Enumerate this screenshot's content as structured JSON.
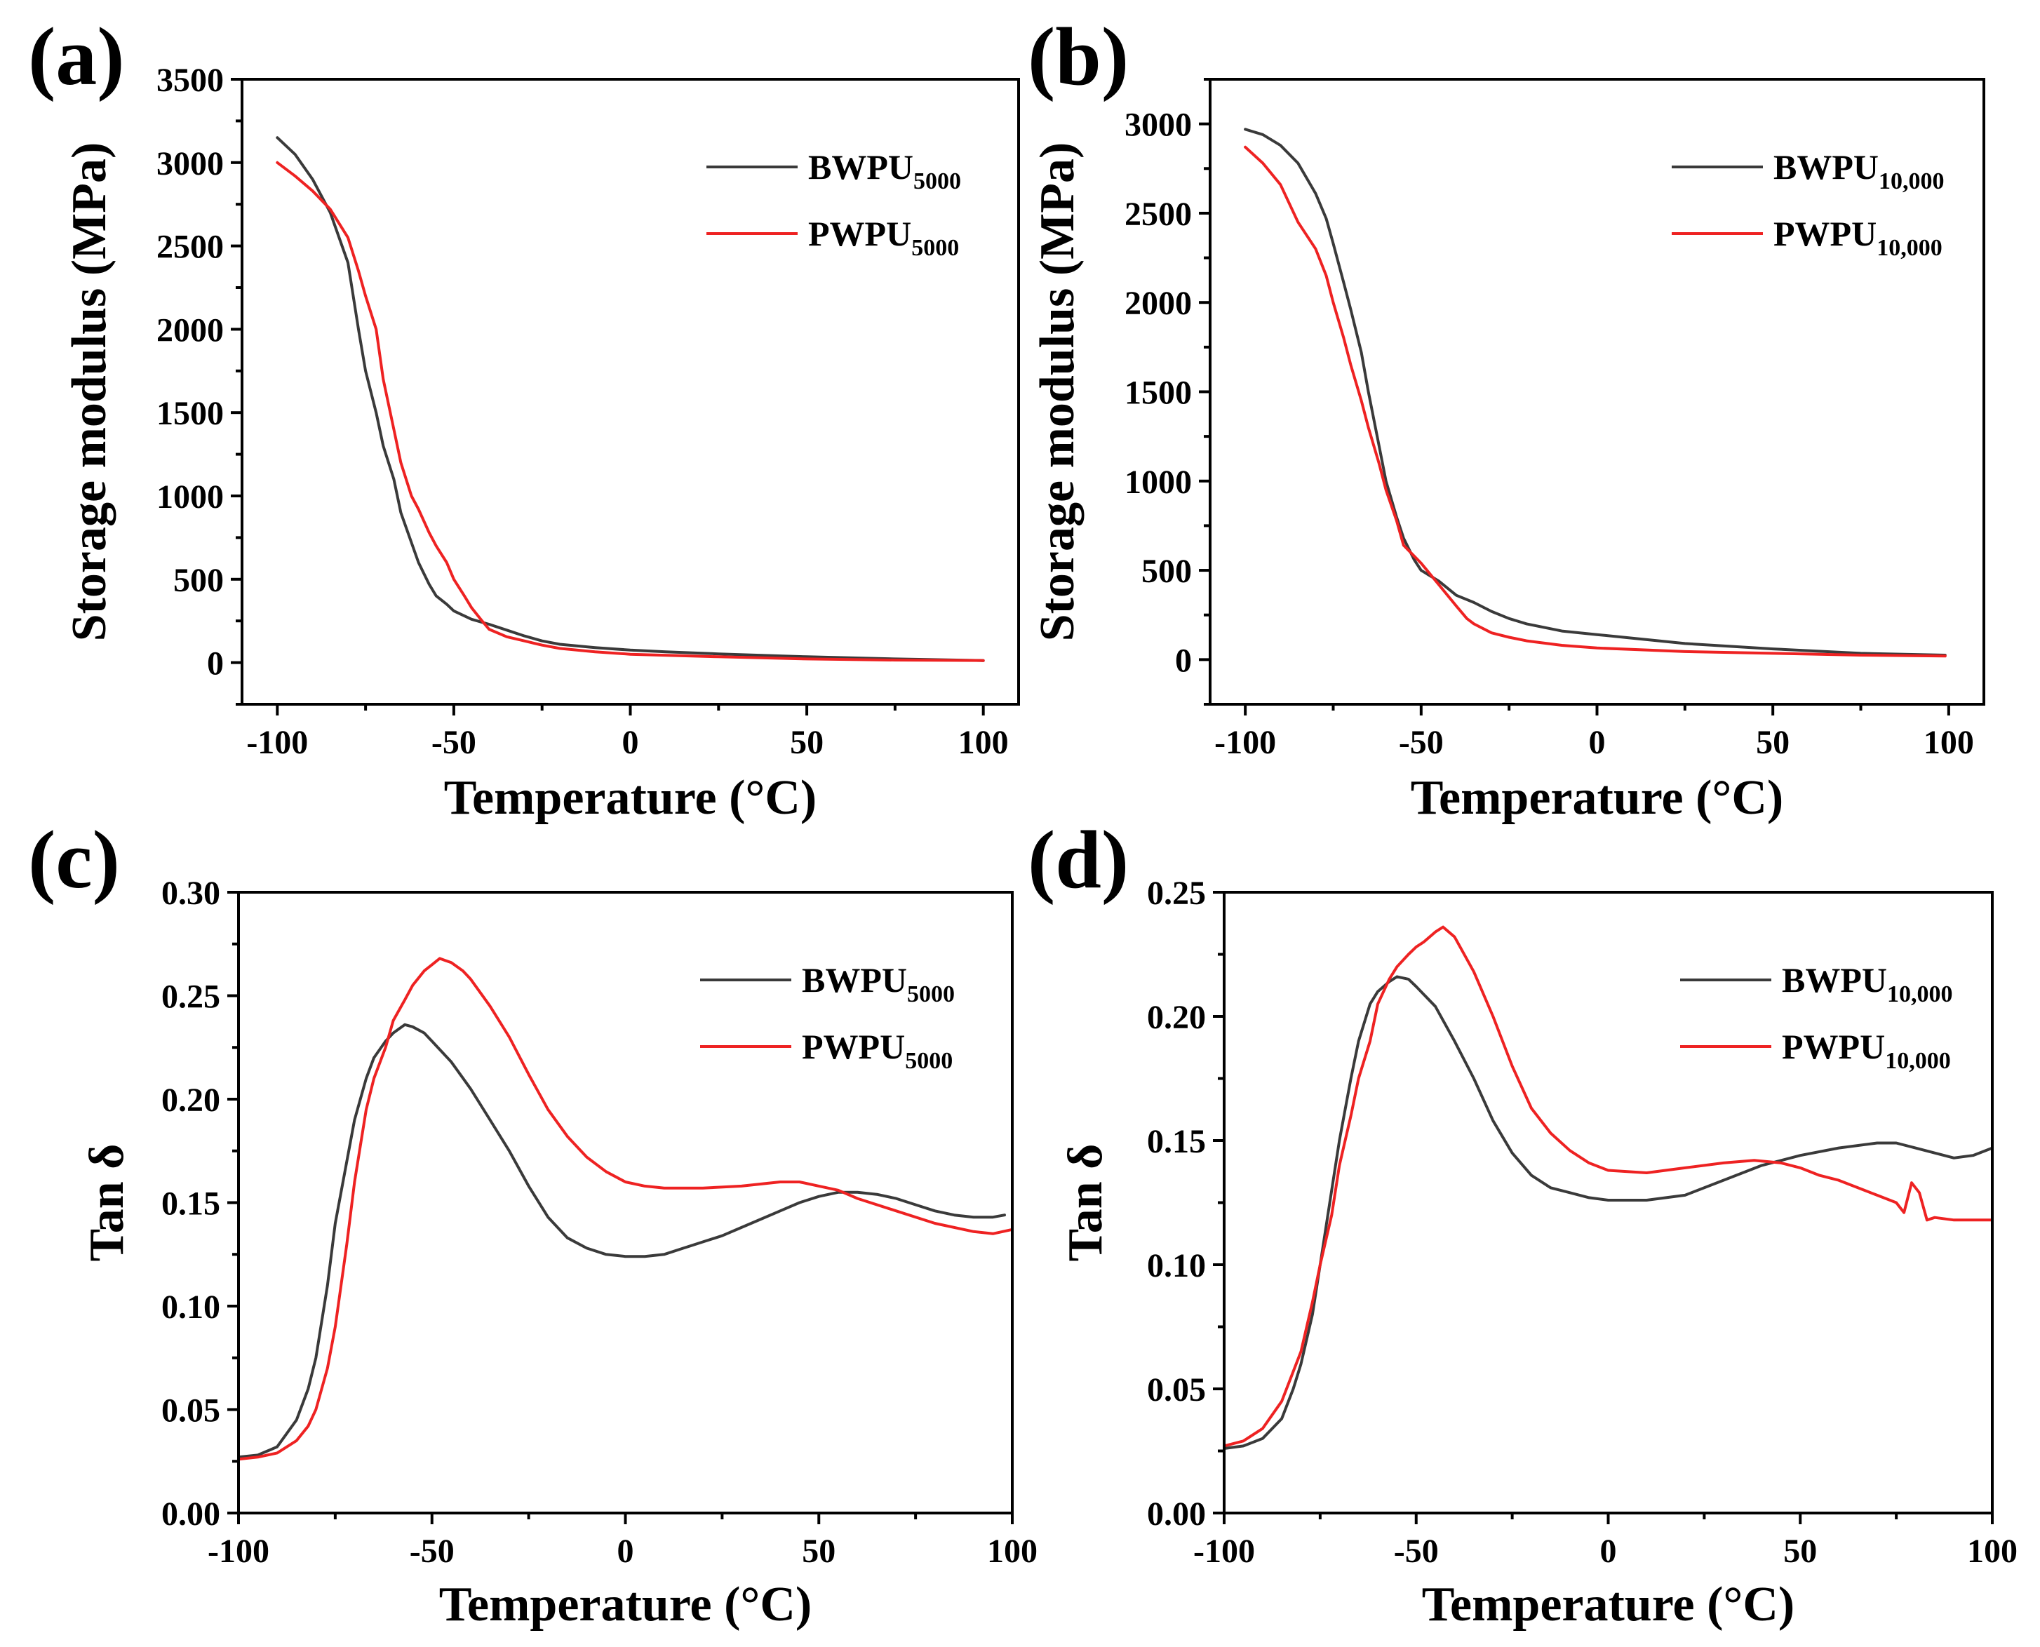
{
  "colors": {
    "bwpu": "#3a3a3a",
    "pwpu": "#ee2222"
  },
  "chart_data": [
    {
      "id": "a",
      "panel_label": "(a)",
      "type": "line",
      "xlabel": "Temperature (°C)",
      "ylabel": "Storage modulus (MPa)",
      "xlim": [
        -110,
        110
      ],
      "ylim": [
        -250,
        3500
      ],
      "xticks": [
        -100,
        -50,
        0,
        50,
        100
      ],
      "xtick_labels": [
        "-100",
        "-50",
        "0",
        "50",
        "100"
      ],
      "yticks": [
        0,
        500,
        1000,
        1500,
        2000,
        2500,
        3000,
        3500
      ],
      "ytick_labels": [
        "0",
        "500",
        "1000",
        "1500",
        "2000",
        "2500",
        "3000",
        "3500"
      ],
      "legend_position": "top-right",
      "series": [
        {
          "name": "BWPU5000",
          "legend_main": "BWPU",
          "legend_sub": "5000",
          "color": "#3a3a3a",
          "x": [
            -100,
            -95,
            -90,
            -85,
            -80,
            -77,
            -75,
            -72,
            -70,
            -67,
            -65,
            -62,
            -60,
            -57,
            -55,
            -52,
            -50,
            -45,
            -40,
            -35,
            -30,
            -25,
            -20,
            -10,
            0,
            10,
            25,
            50,
            75,
            100
          ],
          "y": [
            3150,
            3050,
            2900,
            2700,
            2400,
            2000,
            1750,
            1500,
            1300,
            1100,
            900,
            720,
            600,
            470,
            400,
            350,
            310,
            260,
            230,
            195,
            160,
            130,
            110,
            90,
            75,
            65,
            52,
            35,
            22,
            12
          ]
        },
        {
          "name": "PWPU5000",
          "legend_main": "PWPU",
          "legend_sub": "5000",
          "color": "#ee2222",
          "x": [
            -100,
            -95,
            -90,
            -85,
            -80,
            -77,
            -75,
            -72,
            -70,
            -67,
            -65,
            -62,
            -60,
            -57,
            -55,
            -52,
            -50,
            -47,
            -45,
            -42,
            -40,
            -35,
            -30,
            -25,
            -20,
            -10,
            0,
            25,
            50,
            75,
            100
          ],
          "y": [
            3000,
            2920,
            2830,
            2720,
            2550,
            2350,
            2200,
            2000,
            1700,
            1400,
            1200,
            1000,
            920,
            780,
            700,
            600,
            500,
            400,
            330,
            250,
            200,
            155,
            130,
            105,
            85,
            65,
            50,
            35,
            22,
            15,
            12
          ]
        }
      ]
    },
    {
      "id": "b",
      "panel_label": "(b)",
      "type": "line",
      "xlabel": "Temperature (°C)",
      "ylabel": "Storage modulus (MPa)",
      "xlim": [
        -110,
        110
      ],
      "ylim": [
        -250,
        3250
      ],
      "xticks": [
        -100,
        -50,
        0,
        50,
        100
      ],
      "xtick_labels": [
        "-100",
        "-50",
        "0",
        "50",
        "100"
      ],
      "yticks": [
        0,
        500,
        1000,
        1500,
        2000,
        2500,
        3000
      ],
      "ytick_labels": [
        "0",
        "500",
        "1000",
        "1500",
        "2000",
        "2500",
        "3000"
      ],
      "legend_position": "top-right",
      "series": [
        {
          "name": "BWPU10,000",
          "legend_main": "BWPU",
          "legend_sub": "10,000",
          "color": "#3a3a3a",
          "x": [
            -100,
            -95,
            -90,
            -85,
            -80,
            -77,
            -75,
            -72,
            -70,
            -67,
            -65,
            -62,
            -60,
            -57,
            -55,
            -52,
            -50,
            -45,
            -40,
            -35,
            -30,
            -25,
            -20,
            -10,
            0,
            10,
            25,
            50,
            75,
            99
          ],
          "y": [
            2970,
            2940,
            2880,
            2780,
            2610,
            2470,
            2330,
            2110,
            1960,
            1720,
            1500,
            1200,
            1000,
            800,
            680,
            560,
            500,
            440,
            360,
            320,
            270,
            230,
            200,
            160,
            140,
            120,
            90,
            60,
            35,
            25
          ]
        },
        {
          "name": "PWPU10,000",
          "legend_main": "PWPU",
          "legend_sub": "10,000",
          "color": "#ee2222",
          "x": [
            -100,
            -95,
            -90,
            -85,
            -80,
            -77,
            -75,
            -72,
            -70,
            -67,
            -65,
            -62,
            -60,
            -57,
            -55,
            -52,
            -50,
            -45,
            -40,
            -37,
            -35,
            -30,
            -25,
            -20,
            -10,
            0,
            25,
            50,
            75,
            99
          ],
          "y": [
            2870,
            2780,
            2660,
            2450,
            2300,
            2150,
            2000,
            1800,
            1650,
            1450,
            1300,
            1100,
            950,
            780,
            640,
            580,
            540,
            420,
            300,
            230,
            200,
            150,
            125,
            105,
            80,
            65,
            45,
            35,
            25,
            20
          ]
        }
      ]
    },
    {
      "id": "c",
      "panel_label": "(c)",
      "type": "line",
      "xlabel": "Temperature (°C)",
      "ylabel": "Tan δ",
      "xlim": [
        -100,
        100
      ],
      "ylim": [
        0,
        0.3
      ],
      "xticks": [
        -100,
        -50,
        0,
        50,
        100
      ],
      "xtick_labels": [
        "-100",
        "-50",
        "0",
        "50",
        "100"
      ],
      "yticks": [
        0,
        0.05,
        0.1,
        0.15,
        0.2,
        0.25,
        0.3
      ],
      "ytick_labels": [
        "0.00",
        "0.05",
        "0.10",
        "0.15",
        "0.20",
        "0.25",
        "0.30"
      ],
      "legend_position": "top-right",
      "series": [
        {
          "name": "BWPU5000",
          "legend_main": "BWPU",
          "legend_sub": "5000",
          "color": "#3a3a3a",
          "x": [
            -100,
            -95,
            -90,
            -85,
            -82,
            -80,
            -77,
            -75,
            -72,
            -70,
            -67,
            -65,
            -62,
            -60,
            -57,
            -55,
            -52,
            -50,
            -45,
            -40,
            -35,
            -30,
            -25,
            -20,
            -15,
            -10,
            -5,
            0,
            5,
            10,
            15,
            20,
            25,
            30,
            35,
            40,
            45,
            50,
            55,
            60,
            65,
            70,
            75,
            80,
            85,
            90,
            95,
            98
          ],
          "y": [
            0.027,
            0.028,
            0.032,
            0.045,
            0.06,
            0.075,
            0.11,
            0.14,
            0.17,
            0.19,
            0.21,
            0.22,
            0.228,
            0.232,
            0.236,
            0.235,
            0.232,
            0.228,
            0.218,
            0.205,
            0.19,
            0.175,
            0.158,
            0.143,
            0.133,
            0.128,
            0.125,
            0.124,
            0.124,
            0.125,
            0.128,
            0.131,
            0.134,
            0.138,
            0.142,
            0.146,
            0.15,
            0.153,
            0.155,
            0.155,
            0.154,
            0.152,
            0.149,
            0.146,
            0.144,
            0.143,
            0.143,
            0.144
          ]
        },
        {
          "name": "PWPU5000",
          "legend_main": "PWPU",
          "legend_sub": "5000",
          "color": "#ee2222",
          "x": [
            -100,
            -95,
            -90,
            -85,
            -82,
            -80,
            -77,
            -75,
            -72,
            -70,
            -67,
            -65,
            -62,
            -60,
            -57,
            -55,
            -52,
            -50,
            -48,
            -45,
            -42,
            -40,
            -35,
            -30,
            -25,
            -20,
            -15,
            -10,
            -5,
            0,
            5,
            10,
            20,
            30,
            40,
            45,
            50,
            55,
            60,
            70,
            80,
            90,
            95,
            100
          ],
          "y": [
            0.026,
            0.027,
            0.029,
            0.035,
            0.042,
            0.05,
            0.07,
            0.09,
            0.13,
            0.16,
            0.195,
            0.21,
            0.225,
            0.238,
            0.248,
            0.255,
            0.262,
            0.265,
            0.268,
            0.266,
            0.262,
            0.258,
            0.245,
            0.23,
            0.212,
            0.195,
            0.182,
            0.172,
            0.165,
            0.16,
            0.158,
            0.157,
            0.157,
            0.158,
            0.16,
            0.16,
            0.158,
            0.156,
            0.152,
            0.146,
            0.14,
            0.136,
            0.135,
            0.137
          ]
        }
      ]
    },
    {
      "id": "d",
      "panel_label": "(d)",
      "type": "line",
      "xlabel": "Temperature (°C)",
      "ylabel": "Tan δ",
      "xlim": [
        -100,
        100
      ],
      "ylim": [
        0,
        0.25
      ],
      "xticks": [
        -100,
        -50,
        0,
        50,
        100
      ],
      "xtick_labels": [
        "-100",
        "-50",
        "0",
        "50",
        "100"
      ],
      "yticks": [
        0,
        0.05,
        0.1,
        0.15,
        0.2,
        0.25
      ],
      "ytick_labels": [
        "0.00",
        "0.05",
        "0.10",
        "0.15",
        "0.20",
        "0.25"
      ],
      "legend_position": "top-right",
      "series": [
        {
          "name": "BWPU10,000",
          "legend_main": "BWPU",
          "legend_sub": "10,000",
          "color": "#3a3a3a",
          "x": [
            -100,
            -95,
            -90,
            -85,
            -82,
            -80,
            -77,
            -75,
            -72,
            -70,
            -67,
            -65,
            -62,
            -60,
            -57,
            -55,
            -52,
            -50,
            -45,
            -40,
            -35,
            -30,
            -25,
            -20,
            -15,
            -10,
            -5,
            0,
            5,
            10,
            20,
            30,
            40,
            50,
            60,
            70,
            75,
            80,
            85,
            90,
            95,
            100
          ],
          "y": [
            0.026,
            0.027,
            0.03,
            0.038,
            0.05,
            0.06,
            0.08,
            0.1,
            0.13,
            0.15,
            0.175,
            0.19,
            0.205,
            0.21,
            0.214,
            0.216,
            0.215,
            0.212,
            0.204,
            0.19,
            0.175,
            0.158,
            0.145,
            0.136,
            0.131,
            0.129,
            0.127,
            0.126,
            0.126,
            0.126,
            0.128,
            0.134,
            0.14,
            0.144,
            0.147,
            0.149,
            0.149,
            0.147,
            0.145,
            0.143,
            0.144,
            0.147
          ]
        },
        {
          "name": "PWPU10,000",
          "legend_main": "PWPU",
          "legend_sub": "10,000",
          "color": "#ee2222",
          "x": [
            -100,
            -95,
            -90,
            -85,
            -80,
            -77,
            -75,
            -72,
            -70,
            -67,
            -65,
            -62,
            -60,
            -57,
            -55,
            -52,
            -50,
            -48,
            -45,
            -43,
            -40,
            -35,
            -30,
            -25,
            -20,
            -15,
            -10,
            -5,
            0,
            10,
            20,
            30,
            38,
            45,
            50,
            55,
            60,
            65,
            70,
            75,
            77,
            79,
            81,
            83,
            85,
            90,
            100
          ],
          "y": [
            0.027,
            0.029,
            0.034,
            0.045,
            0.065,
            0.085,
            0.1,
            0.12,
            0.14,
            0.16,
            0.175,
            0.19,
            0.205,
            0.215,
            0.22,
            0.225,
            0.228,
            0.23,
            0.234,
            0.236,
            0.232,
            0.218,
            0.2,
            0.18,
            0.163,
            0.153,
            0.146,
            0.141,
            0.138,
            0.137,
            0.139,
            0.141,
            0.142,
            0.141,
            0.139,
            0.136,
            0.134,
            0.131,
            0.128,
            0.125,
            0.121,
            0.133,
            0.129,
            0.118,
            0.119,
            0.118,
            0.118
          ]
        }
      ]
    }
  ]
}
